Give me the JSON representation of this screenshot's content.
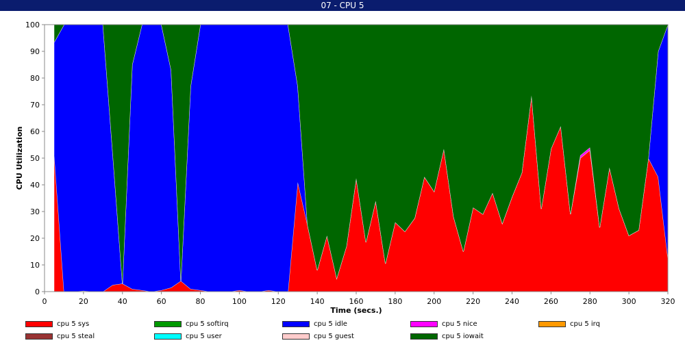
{
  "window": {
    "title": "07 - CPU 5"
  },
  "chart_data": {
    "type": "area",
    "stacked": true,
    "xlabel": "Time (secs.)",
    "ylabel": "CPU Utilization",
    "xlim": [
      0,
      320
    ],
    "ylim": [
      0,
      100
    ],
    "xticks": [
      0,
      20,
      40,
      60,
      80,
      100,
      120,
      140,
      160,
      180,
      200,
      220,
      240,
      260,
      280,
      300,
      320
    ],
    "yticks": [
      0,
      10,
      20,
      30,
      40,
      50,
      60,
      70,
      80,
      90,
      100
    ],
    "grid": false,
    "legend_position": "bottom",
    "x": [
      5,
      10,
      15,
      20,
      25,
      30,
      35,
      40,
      45,
      50,
      55,
      60,
      65,
      70,
      75,
      80,
      85,
      90,
      95,
      100,
      105,
      110,
      115,
      120,
      125,
      130,
      135,
      140,
      145,
      150,
      155,
      160,
      165,
      170,
      175,
      180,
      185,
      190,
      195,
      200,
      205,
      210,
      215,
      220,
      225,
      230,
      235,
      240,
      245,
      250,
      255,
      260,
      265,
      270,
      275,
      280,
      285,
      290,
      295,
      300,
      305,
      310,
      315,
      320
    ],
    "series": [
      {
        "name": "cpu 5 sys",
        "color": "#ff0000",
        "values": [
          51,
          0,
          0,
          0.3,
          0,
          0,
          2.5,
          3,
          1,
          0.5,
          0,
          0.5,
          1.5,
          4,
          1,
          0.5,
          0,
          0,
          0,
          0.5,
          0,
          0,
          0.5,
          0,
          0,
          41,
          25,
          8,
          21,
          5,
          17,
          42.5,
          18.5,
          34,
          10.5,
          26,
          22.5,
          27.5,
          43,
          37.5,
          53.5,
          28,
          15,
          31.5,
          29,
          37,
          25.5,
          35.5,
          44.5,
          73.5,
          31,
          53.5,
          62,
          29,
          50,
          53,
          24,
          46.5,
          31,
          21,
          23,
          50,
          43,
          12.5
        ]
      },
      {
        "name": "cpu 5 softirq",
        "color": "#009900",
        "values": [
          0,
          0,
          0,
          0,
          0,
          0,
          0,
          0,
          0,
          0,
          0,
          0,
          0,
          0,
          0,
          0,
          0,
          0,
          0,
          0,
          0,
          0,
          0,
          0,
          0,
          0,
          0,
          0,
          0,
          0,
          0,
          0,
          0,
          0,
          0,
          0,
          0,
          0,
          0,
          0,
          0,
          0,
          0,
          0,
          0,
          0,
          0,
          0,
          0,
          0,
          0,
          0,
          0,
          0,
          0,
          0,
          0,
          0,
          0,
          0,
          0,
          0,
          0,
          0
        ]
      },
      {
        "name": "cpu 5 idle",
        "color": "#0000ff",
        "values": [
          42.5,
          100,
          100,
          99.7,
          100,
          100,
          49.5,
          0,
          84,
          99.5,
          100,
          99.5,
          81.5,
          0,
          76,
          99.5,
          100,
          100,
          100,
          99.5,
          100,
          100,
          99.5,
          100,
          100,
          36,
          0,
          0,
          0,
          0,
          0,
          0,
          0,
          0,
          0,
          0,
          0,
          0,
          0,
          0,
          0,
          0,
          0,
          0,
          0,
          0,
          0,
          0,
          0,
          0,
          0,
          0,
          0,
          0,
          0,
          0,
          0,
          0,
          0,
          0,
          0,
          0,
          47,
          87.5
        ]
      },
      {
        "name": "cpu 5 nice",
        "color": "#ff00ff",
        "values": [
          0,
          0,
          0,
          0,
          0,
          0,
          0,
          0,
          0,
          0,
          0,
          0,
          0,
          0,
          0,
          0,
          0,
          0,
          0,
          0,
          0,
          0,
          0,
          0,
          0,
          0,
          0,
          0,
          0,
          0,
          0,
          0,
          0,
          0,
          0,
          0,
          0,
          0,
          0,
          0,
          0,
          0,
          0,
          0,
          0,
          0,
          0,
          0,
          0,
          0,
          0,
          0,
          0,
          0,
          1,
          1,
          0,
          0,
          0,
          0,
          0,
          0,
          0,
          0
        ]
      },
      {
        "name": "cpu 5 irq",
        "color": "#ff9900",
        "values": [
          0,
          0,
          0,
          0,
          0,
          0,
          0,
          0,
          0,
          0,
          0,
          0,
          0,
          0,
          0,
          0,
          0,
          0,
          0,
          0,
          0,
          0,
          0,
          0,
          0,
          0,
          0,
          0,
          0,
          0,
          0,
          0,
          0,
          0,
          0,
          0,
          0,
          0,
          0,
          0,
          0,
          0,
          0,
          0,
          0,
          0,
          0,
          0,
          0,
          0,
          0,
          0,
          0,
          0,
          0,
          0,
          0,
          0,
          0,
          0,
          0,
          0,
          0,
          0
        ]
      },
      {
        "name": "cpu 5 steal",
        "color": "#993333",
        "values": [
          0,
          0,
          0,
          0,
          0,
          0,
          0,
          0,
          0,
          0,
          0,
          0,
          0,
          0,
          0,
          0,
          0,
          0,
          0,
          0,
          0,
          0,
          0,
          0,
          0,
          0,
          0,
          0,
          0,
          0,
          0,
          0,
          0,
          0,
          0,
          0,
          0,
          0,
          0,
          0,
          0,
          0,
          0,
          0,
          0,
          0,
          0,
          0,
          0,
          0,
          0,
          0,
          0,
          0,
          0,
          0,
          0,
          0,
          0,
          0,
          0,
          0,
          0,
          0
        ]
      },
      {
        "name": "cpu 5 user",
        "color": "#00ffff",
        "values": [
          0,
          0,
          0,
          0,
          0,
          0,
          0,
          0,
          0,
          0,
          0,
          0,
          0,
          0,
          0,
          0,
          0,
          0,
          0,
          0,
          0,
          0,
          0,
          0,
          0,
          0,
          0,
          0,
          0,
          0,
          0,
          0,
          0,
          0,
          0,
          0,
          0,
          0,
          0,
          0,
          0,
          0,
          0,
          0,
          0,
          0,
          0,
          0,
          0,
          0,
          0,
          0,
          0,
          0,
          0,
          0,
          0,
          0,
          0,
          0,
          0,
          0,
          0,
          0
        ]
      },
      {
        "name": "cpu 5 guest",
        "color": "#ffcccc",
        "values": [
          0,
          0,
          0,
          0,
          0,
          0,
          0,
          0,
          0,
          0,
          0,
          0,
          0,
          0,
          0,
          0,
          0,
          0,
          0,
          0,
          0,
          0,
          0,
          0,
          0,
          0,
          0,
          0,
          0,
          0,
          0,
          0,
          0,
          0,
          0,
          0,
          0,
          0,
          0,
          0,
          0,
          0,
          0,
          0,
          0,
          0,
          0,
          0,
          0,
          0,
          0,
          0,
          0,
          0,
          0,
          0,
          0,
          0,
          0,
          0,
          0,
          0,
          0,
          0
        ]
      },
      {
        "name": "cpu 5 iowait",
        "color": "#006600",
        "values": [
          6.5,
          0,
          0,
          0,
          0,
          0,
          48,
          97,
          15,
          0,
          0,
          0,
          17,
          96,
          23,
          0,
          0,
          0,
          0,
          0,
          0,
          0,
          0,
          0,
          0,
          23,
          75,
          92,
          79,
          95,
          83,
          57.5,
          81.5,
          66,
          89.5,
          74,
          77.5,
          72.5,
          57,
          62.5,
          46.5,
          72,
          85,
          68.5,
          71,
          63,
          74.5,
          64.5,
          55.5,
          26.5,
          69,
          46.5,
          38,
          71,
          49,
          46,
          76,
          53.5,
          69,
          79,
          77,
          50,
          10,
          0
        ]
      }
    ]
  }
}
